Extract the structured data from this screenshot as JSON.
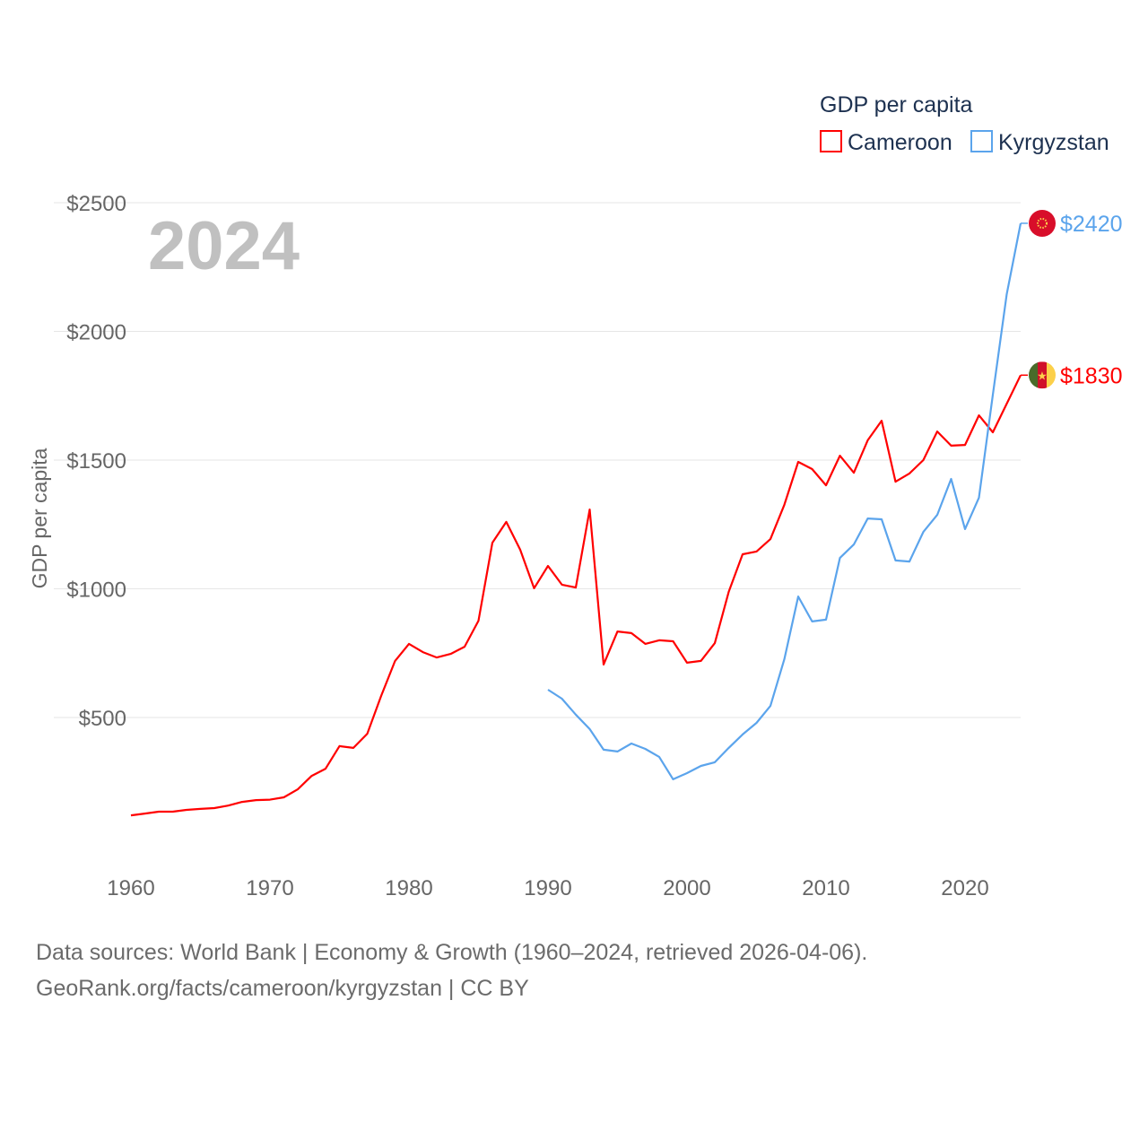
{
  "chart_data": {
    "type": "line",
    "title": "GDP per capita",
    "ylabel": "GDP per capita",
    "xlabel": "",
    "ylim": [
      0,
      2500
    ],
    "xlim": [
      1960,
      2024
    ],
    "grid": true,
    "legend_placement": "top-right",
    "year_label": "2024",
    "x_ticks": [
      1960,
      1970,
      1980,
      1990,
      2000,
      2010,
      2020
    ],
    "x_tick_labels": [
      "1960",
      "1970",
      "1980",
      "1990",
      "2000",
      "2010",
      "2020"
    ],
    "y_ticks": [
      500,
      1000,
      1500,
      2000,
      2500
    ],
    "y_tick_labels": [
      "$500",
      "$1000",
      "$1500",
      "$2000",
      "$2500"
    ],
    "series": [
      {
        "name": "Cameroon",
        "color": "#ff0000",
        "start_year": 1960,
        "end_label": "$1830",
        "flag": "cameroon-flag",
        "values": [
          120,
          127,
          134,
          134,
          141,
          145,
          148,
          158,
          172,
          179,
          181,
          190,
          221,
          273,
          301,
          389,
          382,
          437,
          584,
          720,
          786,
          754,
          733,
          747,
          775,
          876,
          1179,
          1260,
          1152,
          1002,
          1089,
          1016,
          1005,
          1308,
          706,
          834,
          828,
          786,
          800,
          796,
          713,
          720,
          789,
          988,
          1134,
          1145,
          1193,
          1326,
          1493,
          1465,
          1402,
          1517,
          1451,
          1577,
          1653,
          1416,
          1448,
          1500,
          1611,
          1556,
          1559,
          1674,
          1608,
          1719,
          1830
        ]
      },
      {
        "name": "Kyrgyzstan",
        "color": "#5ba4ec",
        "start_year": 1990,
        "end_label": "$2420",
        "flag": "kyrgyzstan-flag",
        "values": [
          608,
          573,
          511,
          455,
          375,
          368,
          399,
          378,
          347,
          260,
          284,
          312,
          326,
          382,
          434,
          479,
          545,
          726,
          970,
          873,
          880,
          1120,
          1172,
          1273,
          1270,
          1110,
          1106,
          1221,
          1287,
          1427,
          1232,
          1354,
          1754,
          2145,
          2420
        ]
      }
    ]
  },
  "footer": {
    "line1": "Data sources: World Bank | Economy & Growth (1960–2024, retrieved 2026-04-06).",
    "line2": "GeoRank.org/facts/cameroon/kyrgyzstan | CC BY"
  }
}
